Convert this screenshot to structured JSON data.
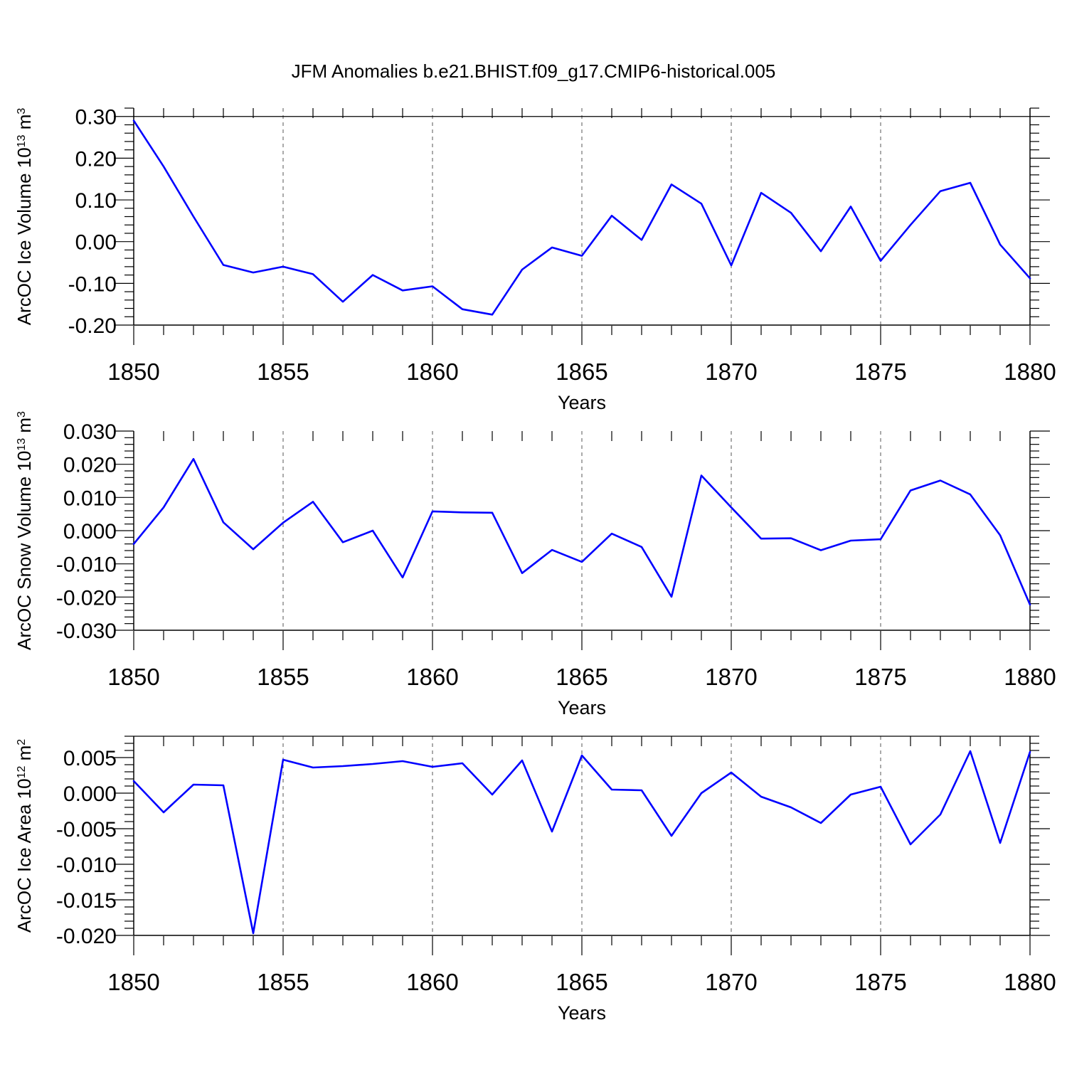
{
  "title": "JFM Anomalies b.e21.BHIST.f09_g17.CMIP6-historical.005",
  "colors": {
    "line": "#0000ff",
    "axis": "#000000",
    "grid": "#555555"
  },
  "chart_data": [
    {
      "type": "line",
      "ylabel": "ArcOC Ice Volume 10",
      "ylabel_exp": "13",
      "ylabel_unit": " m",
      "ylabel_unit_exp": "3",
      "xlabel": "Years",
      "xlim": [
        1850,
        1880
      ],
      "ylim": [
        -0.2,
        0.32
      ],
      "xticks": [
        1850,
        1855,
        1860,
        1865,
        1870,
        1875,
        1880
      ],
      "xtick_labels": [
        "1850",
        "1855",
        "1860",
        "1865",
        "1870",
        "1875",
        "1880"
      ],
      "yticks": [
        0.3,
        0.2,
        0.1,
        0.0,
        -0.1,
        -0.2
      ],
      "ytick_labels": [
        "0.30",
        "0.20",
        "0.10",
        "0.00",
        "-0.10",
        "-0.20"
      ],
      "ref_line": 0.3,
      "x": [
        1850,
        1851,
        1852,
        1853,
        1854,
        1855,
        1856,
        1857,
        1858,
        1859,
        1860,
        1861,
        1862,
        1863,
        1864,
        1865,
        1866,
        1867,
        1868,
        1869,
        1870,
        1871,
        1872,
        1873,
        1874,
        1875,
        1876,
        1877,
        1878,
        1879,
        1880
      ],
      "values": [
        0.29,
        0.18,
        0.06,
        -0.056,
        -0.074,
        -0.06,
        -0.078,
        -0.144,
        -0.08,
        -0.117,
        -0.107,
        -0.162,
        -0.175,
        -0.067,
        -0.014,
        -0.034,
        0.062,
        0.004,
        0.137,
        0.091,
        -0.057,
        0.117,
        0.069,
        -0.023,
        0.084,
        -0.046,
        0.04,
        0.121,
        0.141,
        -0.007,
        -0.088
      ]
    },
    {
      "type": "line",
      "ylabel": "ArcOC Snow Volume 10",
      "ylabel_exp": "13",
      "ylabel_unit": " m",
      "ylabel_unit_exp": "3",
      "xlabel": "Years",
      "xlim": [
        1850,
        1880
      ],
      "ylim": [
        -0.03,
        0.03
      ],
      "xticks": [
        1850,
        1855,
        1860,
        1865,
        1870,
        1875,
        1880
      ],
      "xtick_labels": [
        "1850",
        "1855",
        "1860",
        "1865",
        "1870",
        "1875",
        "1880"
      ],
      "yticks": [
        0.03,
        0.02,
        0.01,
        0.0,
        -0.01,
        -0.02,
        -0.03
      ],
      "ytick_labels": [
        "0.030",
        "0.020",
        "0.010",
        "0.000",
        "-0.010",
        "-0.020",
        "-0.030"
      ],
      "ref_line": null,
      "x": [
        1850,
        1851,
        1852,
        1853,
        1854,
        1855,
        1856,
        1857,
        1858,
        1859,
        1860,
        1861,
        1862,
        1863,
        1864,
        1865,
        1866,
        1867,
        1868,
        1869,
        1870,
        1871,
        1872,
        1873,
        1874,
        1875,
        1876,
        1877,
        1878,
        1879,
        1880
      ],
      "values": [
        -0.004,
        0.007,
        0.0216,
        0.0025,
        -0.0056,
        0.0024,
        0.0087,
        -0.0035,
        0.0,
        -0.0141,
        0.0058,
        0.0055,
        0.0054,
        -0.0128,
        -0.0058,
        -0.0094,
        -0.0009,
        -0.0049,
        -0.0199,
        0.0166,
        0.007,
        -0.0024,
        -0.0023,
        -0.0059,
        -0.003,
        -0.0026,
        0.0121,
        0.0151,
        0.0109,
        -0.0014,
        -0.0223
      ]
    },
    {
      "type": "line",
      "ylabel": "ArcOC Ice Area 10",
      "ylabel_exp": "12",
      "ylabel_unit": " m",
      "ylabel_unit_exp": "2",
      "xlabel": "Years",
      "xlim": [
        1850,
        1880
      ],
      "ylim": [
        -0.02,
        0.008
      ],
      "xticks": [
        1850,
        1855,
        1860,
        1865,
        1870,
        1875,
        1880
      ],
      "xtick_labels": [
        "1850",
        "1855",
        "1860",
        "1865",
        "1870",
        "1875",
        "1880"
      ],
      "yticks": [
        0.005,
        0.0,
        -0.005,
        -0.01,
        -0.015,
        -0.02
      ],
      "ytick_labels": [
        "0.005",
        "0.000",
        "-0.005",
        "-0.010",
        "-0.015",
        "-0.020"
      ],
      "ref_line": 0.008,
      "x": [
        1850,
        1851,
        1852,
        1853,
        1854,
        1855,
        1856,
        1857,
        1858,
        1859,
        1860,
        1861,
        1862,
        1863,
        1864,
        1865,
        1866,
        1867,
        1868,
        1869,
        1870,
        1871,
        1872,
        1873,
        1874,
        1875,
        1876,
        1877,
        1878,
        1879,
        1880
      ],
      "values": [
        0.0017,
        -0.0027,
        0.0012,
        0.0011,
        -0.0197,
        0.0047,
        0.0036,
        0.0038,
        0.0041,
        0.0045,
        0.0037,
        0.0042,
        -0.0002,
        0.0046,
        -0.0054,
        0.0053,
        0.0005,
        0.0004,
        -0.006,
        0.0,
        0.0029,
        -0.0005,
        -0.002,
        -0.0042,
        -0.0002,
        0.0009,
        -0.0072,
        -0.003,
        0.0059,
        -0.007,
        0.0058
      ]
    }
  ]
}
